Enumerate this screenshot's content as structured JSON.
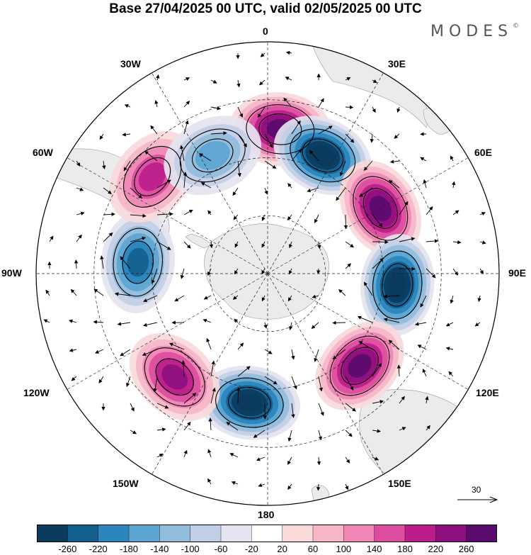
{
  "title": "Base 27/04/2025 00 UTC, valid 02/05/2025 00 UTC",
  "brand": "MODES",
  "brand_mark": "©",
  "longitude_labels": {
    "lon0": "0",
    "lon30e": "30E",
    "lon60e": "60E",
    "lon90e": "90E",
    "lon120e": "120E",
    "lon150e": "150E",
    "lon180": "180",
    "lon150w": "150W",
    "lon120w": "120W",
    "lon90w": "90W",
    "lon60w": "60W",
    "lon30w": "30W"
  },
  "reference_vector": "30",
  "colorbar": {
    "ticks": [
      "-260",
      "-220",
      "-180",
      "-140",
      "-100",
      "-60",
      "-20",
      "20",
      "60",
      "100",
      "140",
      "180",
      "220",
      "260"
    ],
    "colors": [
      "#0b3b5e",
      "#13608f",
      "#2a86bd",
      "#5ba6d1",
      "#92bcdc",
      "#c3cfe6",
      "#e4e4f0",
      "#ffffff",
      "#f9d9da",
      "#f6b6c8",
      "#ef86b4",
      "#dd4c9f",
      "#bb1e8a",
      "#8e0f7e",
      "#5b0a6d"
    ]
  },
  "anomaly_centers": [
    {
      "name": "positive center near 0",
      "sign": "positive",
      "lon": 5,
      "lat": -40,
      "peak": 220
    },
    {
      "name": "negative center near 20E",
      "sign": "negative",
      "lon": 25,
      "lat": -45,
      "peak": -260
    },
    {
      "name": "positive center near 60E",
      "sign": "positive",
      "lon": 60,
      "lat": -45,
      "peak": 220
    },
    {
      "name": "negative center near 90E",
      "sign": "negative",
      "lon": 95,
      "lat": -45,
      "peak": -260
    },
    {
      "name": "positive center near 130E",
      "sign": "positive",
      "lon": 135,
      "lat": -45,
      "peak": 220
    },
    {
      "name": "negative center near 170W",
      "sign": "negative",
      "lon": -172,
      "lat": -45,
      "peak": -260
    },
    {
      "name": "positive center near 135W",
      "sign": "positive",
      "lon": -138,
      "lat": -42,
      "peak": 180
    },
    {
      "name": "negative center near 85W",
      "sign": "negative",
      "lon": -85,
      "lat": -45,
      "peak": -180
    },
    {
      "name": "positive center near 50W",
      "sign": "positive",
      "lon": -50,
      "lat": -38,
      "peak": 140
    },
    {
      "name": "negative center near 25W",
      "sign": "negative",
      "lon": -25,
      "lat": -45,
      "peak": -100
    }
  ]
}
